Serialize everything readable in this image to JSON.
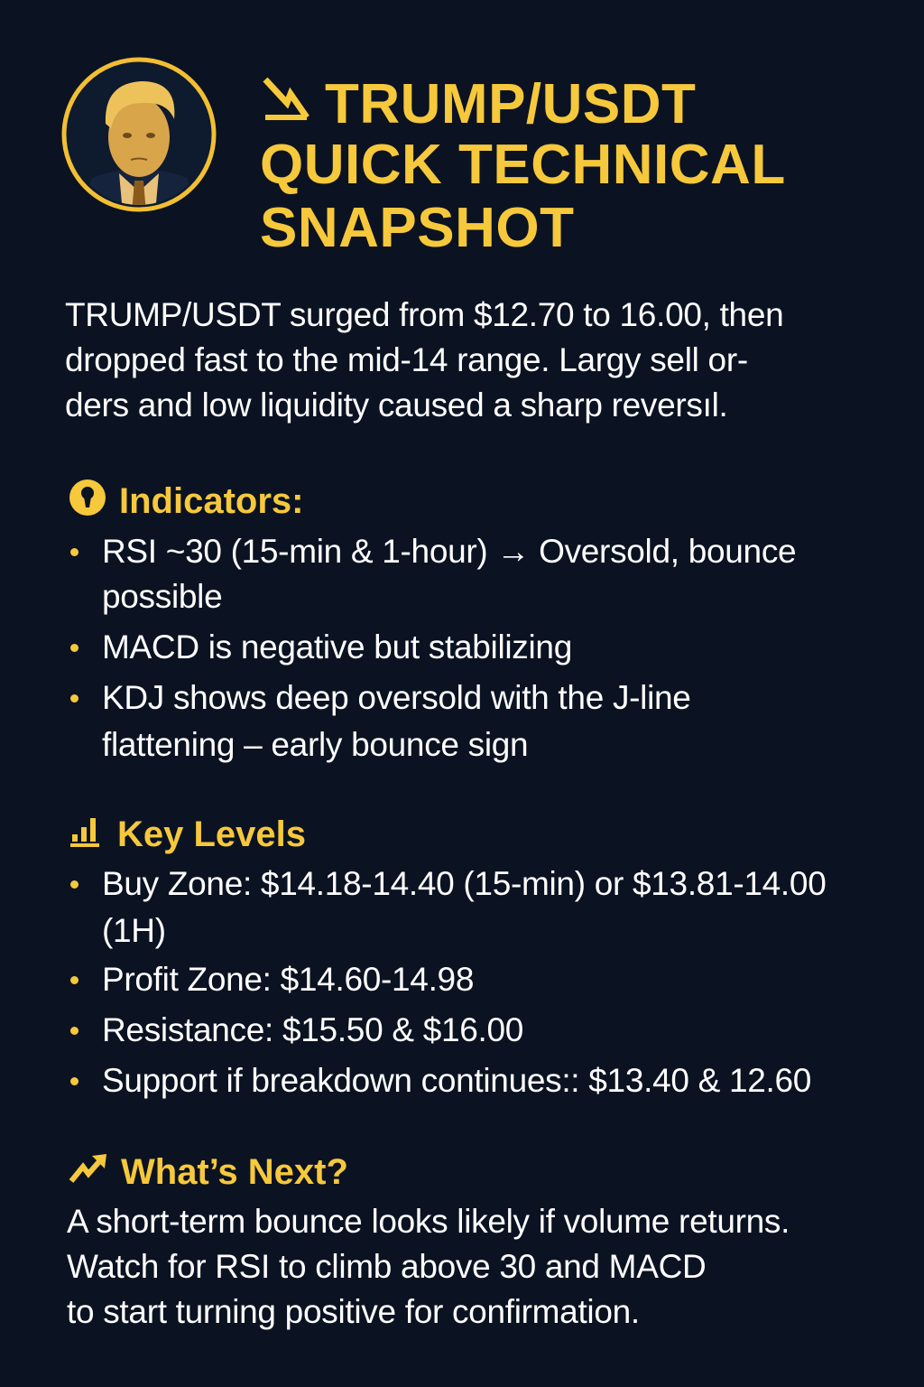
{
  "colors": {
    "background": "#0b1322",
    "accent": "#f6c83b",
    "text": "#ffffff"
  },
  "header": {
    "icon": "trend-down-arrow-icon",
    "portrait": "trump-portrait-coin",
    "title_lines": [
      "TRUMP/USDT",
      "QUICK TECHNICAL",
      "SNAPSHOT"
    ]
  },
  "intro": {
    "lines": [
      "TRUMP/USDT surged from $12.70 to 16.00, then",
      "dropped fast to the mid-14 range. Largy sell or-",
      "ders and low liquidity caused a sharp reversıl."
    ]
  },
  "indicators": {
    "icon": "keyhole-icon",
    "heading": "Indicators:",
    "items": [
      {
        "lines": [
          "RSI ~30 (15-min & 1-hour) → Oversold, bounce",
          "possible"
        ]
      },
      {
        "lines": [
          "MACD is negative but stabilizing"
        ]
      },
      {
        "lines": [
          "KDJ shows deep oversold with the J-line",
          "flattening – early bounce sign"
        ]
      }
    ]
  },
  "key_levels": {
    "icon": "bar-chart-icon",
    "heading": "Key Levels",
    "items": [
      {
        "lines": [
          "Buy Zone: $14.18-14.40 (15-min) or $13.81-14.00",
          "(1H)"
        ]
      },
      {
        "lines": [
          "Profit Zone: $14.60-14.98"
        ]
      },
      {
        "lines": [
          "Resistance: $15.50 & $16.00"
        ]
      },
      {
        "lines": [
          "Support if breakdown continues:: $13.40 & 12.60"
        ]
      }
    ]
  },
  "whats_next": {
    "icon": "trend-up-arrow-icon",
    "heading": "What’s Next?",
    "lines": [
      "A short-term bounce looks likely if volume returns.",
      "Watch for RSI to climb above 30 and MACD",
      "to start turning positive for confirmation."
    ]
  }
}
